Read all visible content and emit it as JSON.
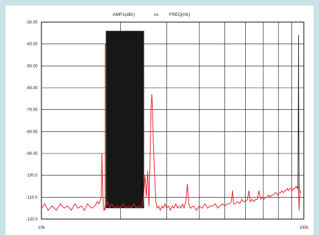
{
  "chart_data": {
    "type": "line",
    "title_parts": [
      "AMP1(dBr)",
      "vs",
      "FREQ(Hz)"
    ],
    "xscale": "log",
    "xlim": [
      10000,
      100000
    ],
    "ylim": [
      -120,
      -30
    ],
    "x_tick_labels": [
      "10k",
      "100k"
    ],
    "y_tick_labels": [
      "-30.00",
      "-40.00",
      "-50.00",
      "-60.00",
      "-70.00",
      "-80.00",
      "-90.00",
      "-100.0",
      "-110.0",
      "-120.0"
    ],
    "grid": true,
    "series": [
      {
        "color": "#e8202a",
        "points": [
          [
            10000,
            -115
          ],
          [
            10300,
            -113
          ],
          [
            10600,
            -116
          ],
          [
            11000,
            -114
          ],
          [
            11400,
            -116
          ],
          [
            11800,
            -113
          ],
          [
            12200,
            -115
          ],
          [
            12600,
            -114
          ],
          [
            13000,
            -116
          ],
          [
            13400,
            -113
          ],
          [
            13800,
            -115
          ],
          [
            14200,
            -114
          ],
          [
            14600,
            -116
          ],
          [
            15000,
            -113
          ],
          [
            15500,
            -115
          ],
          [
            16000,
            -114
          ],
          [
            16300,
            -112
          ],
          [
            16600,
            -113
          ],
          [
            16900,
            -110
          ],
          [
            17000,
            -90
          ],
          [
            17150,
            -110
          ],
          [
            17300,
            -116
          ],
          [
            17600,
            -114
          ],
          [
            17900,
            -112
          ],
          [
            18200,
            -115
          ],
          [
            18500,
            -113
          ],
          [
            19000,
            -115
          ],
          [
            19500,
            -114
          ],
          [
            20000,
            -115
          ],
          [
            20500,
            -113
          ],
          [
            21000,
            -115
          ],
          [
            21500,
            -114
          ],
          [
            22000,
            -115
          ],
          [
            22500,
            -113
          ],
          [
            23000,
            -115
          ],
          [
            23500,
            -114
          ],
          [
            24000,
            -115
          ],
          [
            24500,
            -110
          ],
          [
            24800,
            -100
          ],
          [
            25100,
            -110
          ],
          [
            25400,
            -98
          ],
          [
            25700,
            -114
          ],
          [
            26000,
            -86
          ],
          [
            26200,
            -68
          ],
          [
            26350,
            -63
          ],
          [
            26500,
            -70
          ],
          [
            26700,
            -85
          ],
          [
            26900,
            -95
          ],
          [
            27100,
            -105
          ],
          [
            27300,
            -112
          ],
          [
            27600,
            -115
          ],
          [
            28000,
            -114
          ],
          [
            28400,
            -116
          ],
          [
            28800,
            -114
          ],
          [
            29200,
            -115
          ],
          [
            29600,
            -113
          ],
          [
            30000,
            -115
          ],
          [
            30500,
            -114
          ],
          [
            31000,
            -116
          ],
          [
            31500,
            -114
          ],
          [
            32000,
            -115
          ],
          [
            32500,
            -113
          ],
          [
            33000,
            -115
          ],
          [
            33500,
            -114
          ],
          [
            34000,
            -115
          ],
          [
            34500,
            -113
          ],
          [
            35000,
            -115
          ],
          [
            35500,
            -112
          ],
          [
            36000,
            -104
          ],
          [
            36400,
            -113
          ],
          [
            37000,
            -115
          ],
          [
            38000,
            -114
          ],
          [
            39000,
            -116
          ],
          [
            40000,
            -114
          ],
          [
            41000,
            -115
          ],
          [
            42000,
            -113
          ],
          [
            43000,
            -115
          ],
          [
            44000,
            -114
          ],
          [
            45000,
            -114
          ],
          [
            46000,
            -113
          ],
          [
            47000,
            -115
          ],
          [
            48000,
            -114
          ],
          [
            49000,
            -113
          ],
          [
            50000,
            -114
          ],
          [
            51000,
            -113
          ],
          [
            52000,
            -113
          ],
          [
            53000,
            -112
          ],
          [
            53500,
            -107
          ],
          [
            54000,
            -113
          ],
          [
            55000,
            -113
          ],
          [
            56000,
            -112
          ],
          [
            57000,
            -113
          ],
          [
            58000,
            -111
          ],
          [
            59000,
            -112
          ],
          [
            60000,
            -112
          ],
          [
            61000,
            -111
          ],
          [
            61800,
            -107
          ],
          [
            62500,
            -112
          ],
          [
            63500,
            -111
          ],
          [
            64500,
            -112
          ],
          [
            65500,
            -111
          ],
          [
            66500,
            -111
          ],
          [
            67500,
            -107
          ],
          [
            68500,
            -111
          ],
          [
            69500,
            -110
          ],
          [
            70500,
            -111
          ],
          [
            71500,
            -110
          ],
          [
            72500,
            -110
          ],
          [
            73500,
            -109
          ],
          [
            74500,
            -110
          ],
          [
            75500,
            -109
          ],
          [
            76500,
            -109
          ],
          [
            77500,
            -108
          ],
          [
            78500,
            -108
          ],
          [
            79500,
            -109
          ],
          [
            80500,
            -108
          ],
          [
            81500,
            -108
          ],
          [
            82500,
            -107
          ],
          [
            83500,
            -108
          ],
          [
            84500,
            -107
          ],
          [
            85500,
            -107
          ],
          [
            86500,
            -106
          ],
          [
            87500,
            -107
          ],
          [
            88500,
            -106
          ],
          [
            89500,
            -106
          ],
          [
            90500,
            -107
          ],
          [
            91500,
            -106
          ],
          [
            92500,
            -106
          ],
          [
            93500,
            -105
          ],
          [
            94500,
            -106
          ],
          [
            95000,
            -105
          ],
          [
            95500,
            -107
          ],
          [
            96000,
            -116
          ],
          [
            96500,
            -107
          ],
          [
            97500,
            -108
          ]
        ]
      },
      {
        "color": "#000000",
        "points": [
          [
            95000,
            -106
          ],
          [
            95200,
            -88
          ],
          [
            95400,
            -60
          ],
          [
            95500,
            -36
          ],
          [
            95600,
            -60
          ],
          [
            95800,
            -90
          ],
          [
            96000,
            -107
          ]
        ]
      }
    ],
    "dense_block": {
      "color": "#111111",
      "x_start": 17600,
      "x_end": 24600,
      "top": -34,
      "bottom": -115
    }
  }
}
